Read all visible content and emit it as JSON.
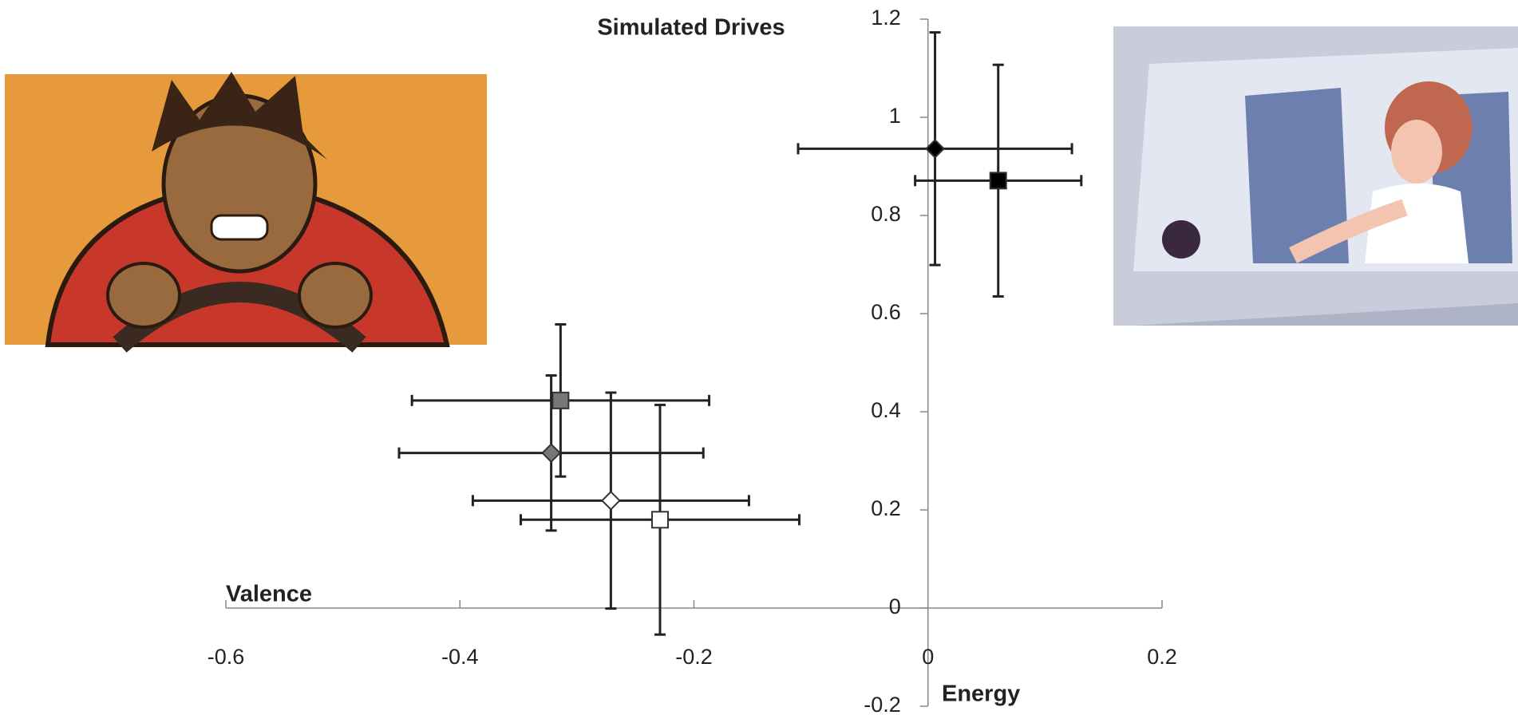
{
  "chart_data": {
    "type": "scatter",
    "title": "Simulated Drives",
    "x_label": "Valence",
    "y_label": "Energy",
    "xlim": [
      -0.6,
      0.2
    ],
    "ylim": [
      -0.2,
      1.2
    ],
    "xticks": [
      -0.6,
      -0.4,
      -0.2,
      0,
      0.2
    ],
    "yticks": [
      -0.2,
      0,
      0.2,
      0.4,
      0.6,
      0.8,
      1,
      1.2
    ],
    "grid": false,
    "series": [
      {
        "color": "#000000",
        "marker": "diamond",
        "x": [
          0.006
        ],
        "values": [
          0.936
        ],
        "xerr": [
          0.117
        ],
        "yerr": [
          0.237
        ]
      },
      {
        "color": "#000000",
        "marker": "square",
        "x": [
          0.06
        ],
        "values": [
          0.871
        ],
        "xerr": [
          0.071
        ],
        "yerr": [
          0.236
        ]
      },
      {
        "color": "#777777",
        "marker": "square",
        "x": [
          -0.314
        ],
        "values": [
          0.423
        ],
        "xerr": [
          0.127
        ],
        "yerr": [
          0.155
        ]
      },
      {
        "color": "#777777",
        "marker": "diamond",
        "x": [
          -0.322
        ],
        "values": [
          0.316
        ],
        "xerr": [
          0.13
        ],
        "yerr": [
          0.158
        ]
      },
      {
        "color": "#ffffff",
        "marker": "diamond",
        "x": [
          -0.271
        ],
        "values": [
          0.219
        ],
        "xerr": [
          0.118
        ],
        "yerr": [
          0.22
        ]
      },
      {
        "color": "#ffffff",
        "marker": "square",
        "x": [
          -0.229
        ],
        "values": [
          0.18
        ],
        "xerr": [
          0.119
        ],
        "yerr": [
          0.234
        ]
      }
    ]
  }
}
